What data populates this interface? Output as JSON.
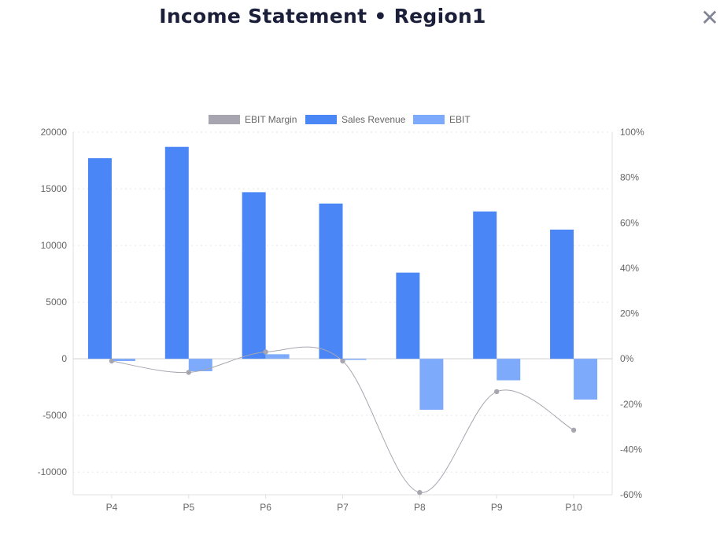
{
  "header": {
    "title": "Income Statement • Region1",
    "close_symbol": "✕"
  },
  "chart_data": {
    "type": "bar",
    "title": "Income Statement • Region1",
    "categories": [
      "P4",
      "P5",
      "P6",
      "P7",
      "P8",
      "P9",
      "P10"
    ],
    "series": [
      {
        "name": "Sales Revenue",
        "type": "bar",
        "axis": "left",
        "color": "#4a86f5",
        "values": [
          17700,
          18700,
          14700,
          13700,
          7600,
          13000,
          11400
        ]
      },
      {
        "name": "EBIT",
        "type": "bar",
        "axis": "left",
        "color": "#7eaafb",
        "values": [
          -200,
          -1100,
          400,
          -100,
          -4500,
          -1900,
          -3600
        ]
      },
      {
        "name": "EBIT Margin",
        "type": "line",
        "axis": "right",
        "color": "#a7a6b0",
        "smooth": true,
        "unit": "%",
        "values": [
          -1,
          -6,
          3,
          -1,
          -59,
          -14.5,
          -31.5
        ]
      }
    ],
    "left_axis": {
      "min": -12000,
      "max": 20000,
      "ticks": [
        20000,
        15000,
        10000,
        5000,
        0,
        -5000,
        -10000
      ]
    },
    "right_axis": {
      "min": -60,
      "max": 100,
      "ticks": [
        "100%",
        "80%",
        "60%",
        "40%",
        "20%",
        "0%",
        "-20%",
        "-40%",
        "-60%"
      ]
    },
    "legend": {
      "position": "top",
      "order": [
        "EBIT Margin",
        "Sales Revenue",
        "EBIT"
      ]
    },
    "grid": true
  }
}
